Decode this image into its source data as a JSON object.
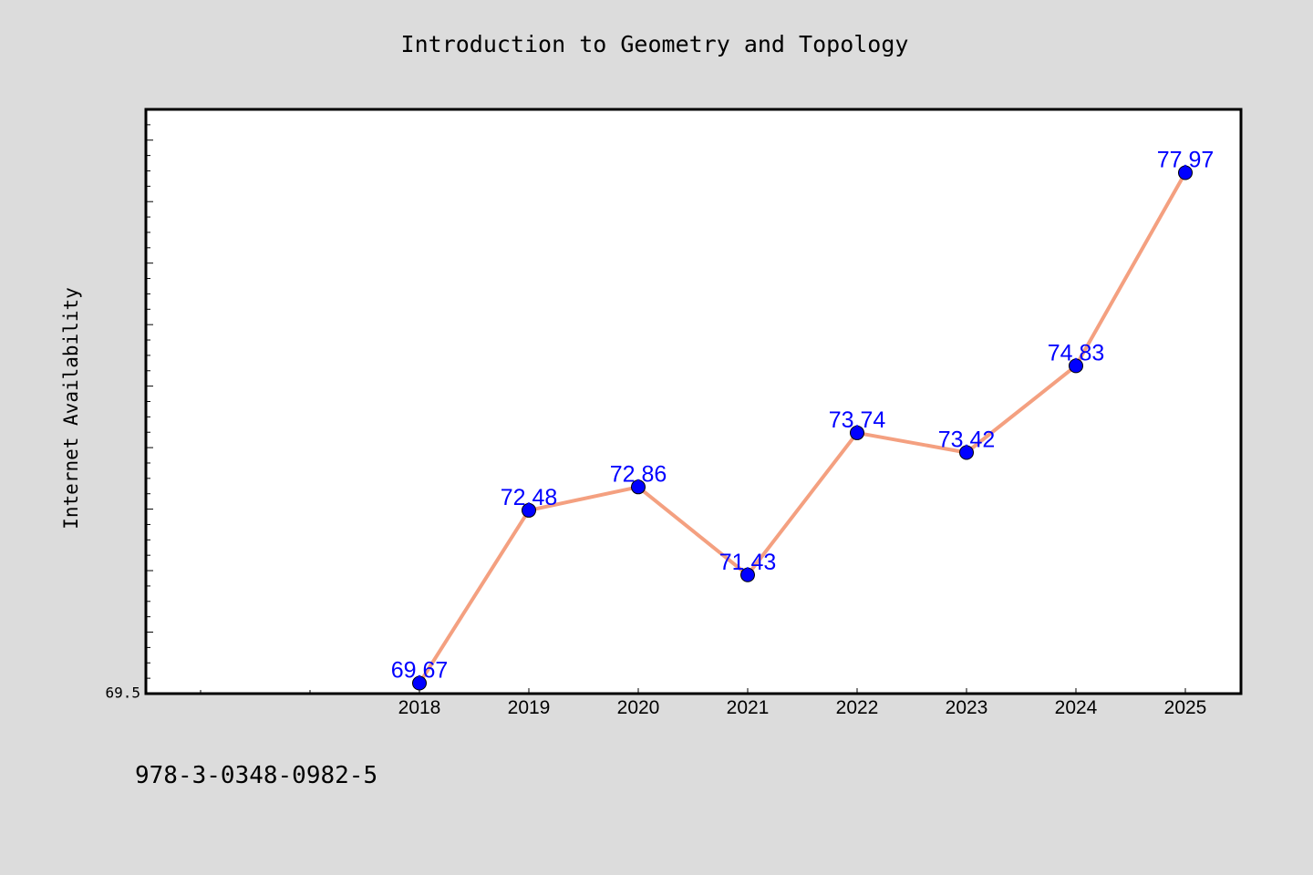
{
  "chart_data": {
    "type": "line",
    "title": "Introduction to Geometry and Topology",
    "xlabel": "",
    "ylabel": "Internet Availability",
    "categories": [
      "2018",
      "2019",
      "2020",
      "2021",
      "2022",
      "2023",
      "2024",
      "2025"
    ],
    "series": [
      {
        "values": [
          69.67,
          72.48,
          72.86,
          71.43,
          73.74,
          73.42,
          74.83,
          77.97
        ]
      }
    ],
    "data_labels": [
      "69.67",
      "72.48",
      "72.86",
      "71.43",
      "73.74",
      "73.42",
      "74.83",
      "77.97"
    ],
    "ytick_labels": [
      "69.5"
    ],
    "ylim": [
      69.5,
      79.0
    ],
    "grid": false,
    "line_color": "#f4a080",
    "marker_color": "#0000ff",
    "label_color": "#0000ff",
    "plot_background": "#ffffff",
    "page_background": "#dcdcdc"
  },
  "footer_text": "978-3-0348-0982-5"
}
